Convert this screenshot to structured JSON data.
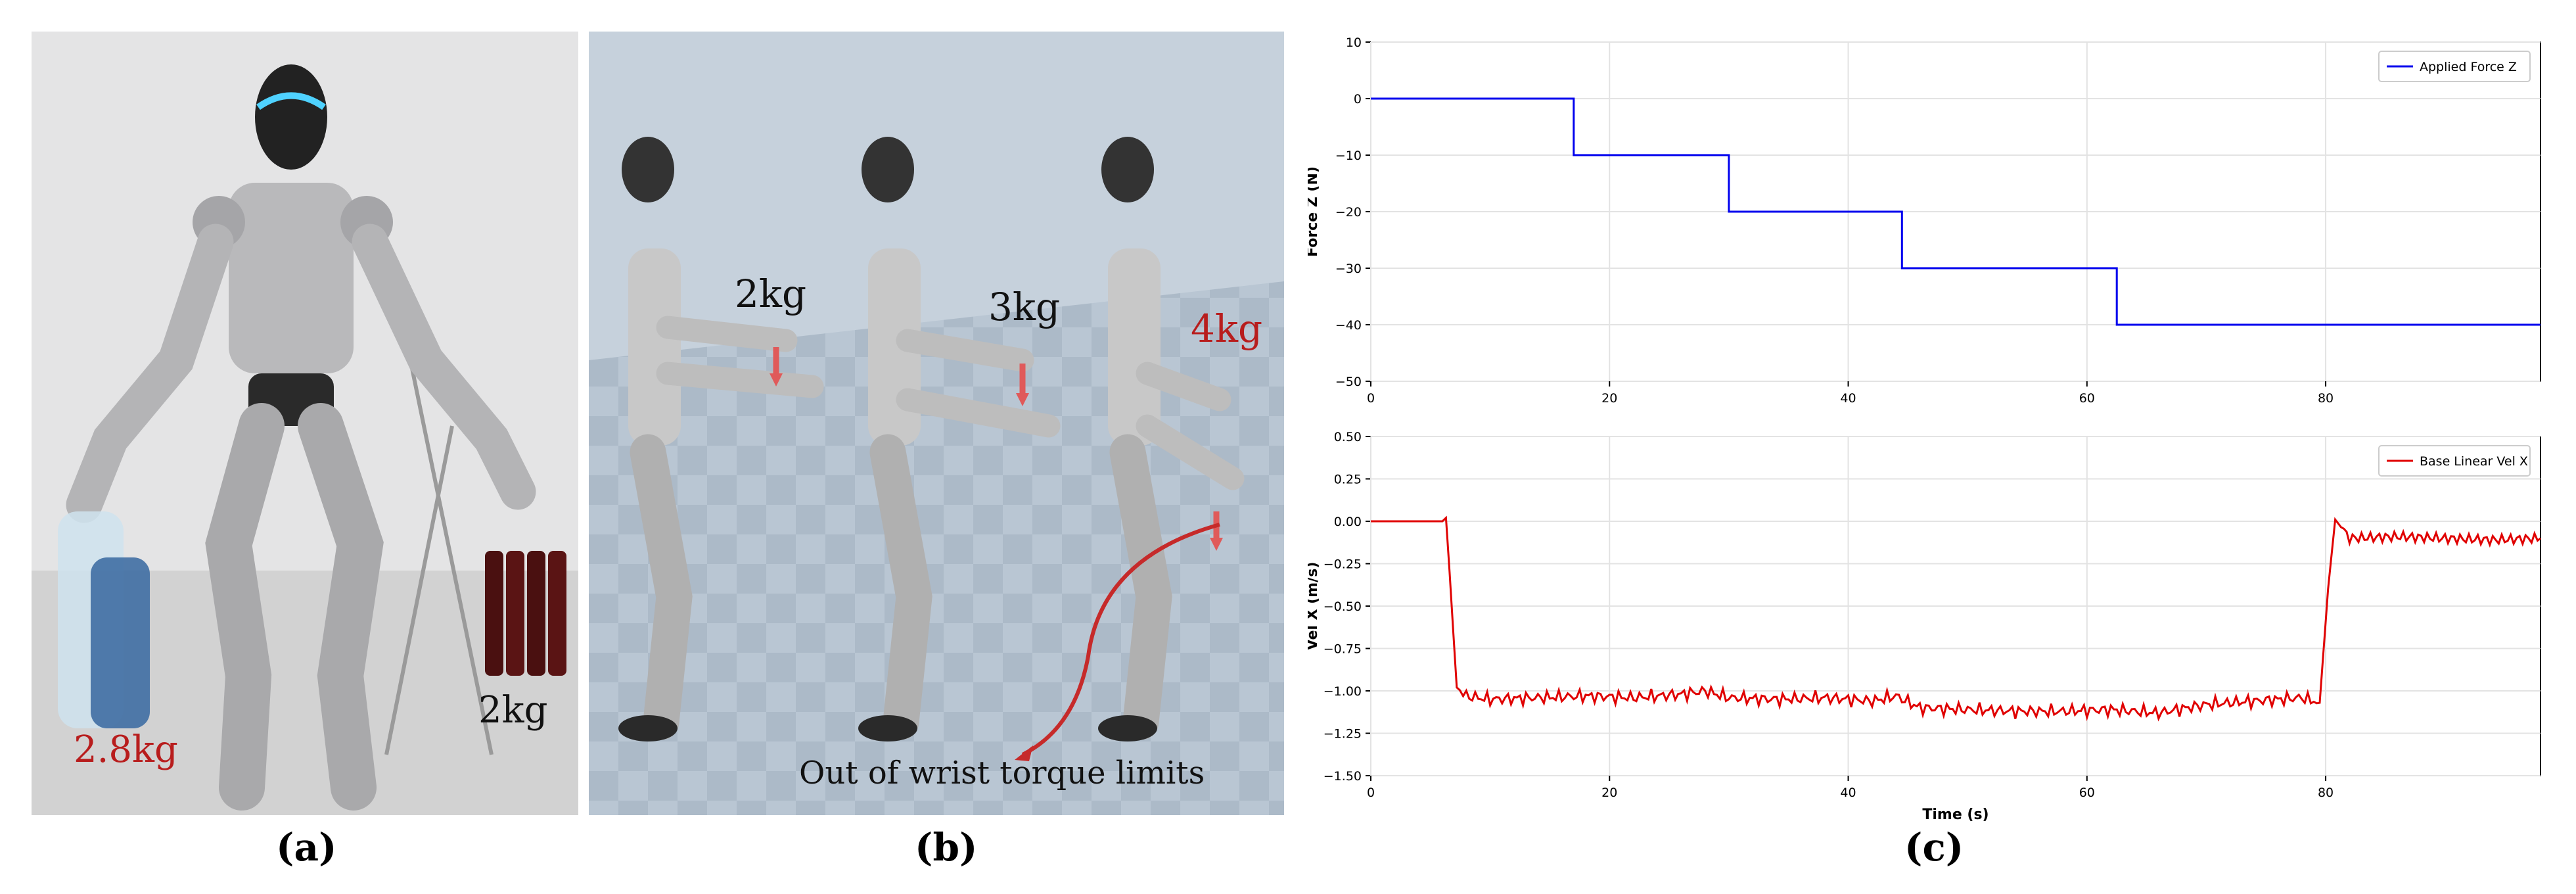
{
  "panel_a": {
    "label_left": "2.8kg",
    "label_right": "2kg",
    "caption": "(a)"
  },
  "panel_b": {
    "label_1": "2kg",
    "label_2": "3kg",
    "label_3": "4kg",
    "annotation": "Out of wrist torque limits",
    "caption": "(b)"
  },
  "panel_c": {
    "caption": "(c)"
  },
  "colors": {
    "force_line": "#0000ee",
    "vel_line": "#e00000",
    "red_label": "#b81d1d"
  },
  "chart_data": [
    {
      "type": "line",
      "ylabel": "Force Z (N)",
      "xlabel": "",
      "xlim": [
        0,
        98
      ],
      "ylim": [
        -50,
        10
      ],
      "yticks": [
        10,
        0,
        -10,
        -20,
        -30,
        -40,
        -50
      ],
      "xticks": [
        0,
        20,
        40,
        60,
        80
      ],
      "grid": true,
      "legend": "top-right",
      "series": [
        {
          "name": "Applied Force Z",
          "x": [
            0,
            17,
            17,
            30,
            30,
            44.5,
            44.5,
            62.5,
            62.5,
            98
          ],
          "y": [
            0,
            0,
            -10,
            -10,
            -20,
            -20,
            -30,
            -30,
            -40,
            -40
          ]
        }
      ]
    },
    {
      "type": "line",
      "ylabel": "Vel X (m/s)",
      "xlabel": "Time (s)",
      "xlim": [
        0,
        98
      ],
      "ylim": [
        -1.5,
        0.5
      ],
      "yticks": [
        0.5,
        0.25,
        0.0,
        -0.25,
        -0.5,
        -0.75,
        -1.0,
        -1.25,
        -1.5
      ],
      "ytick_labels": [
        "0.50",
        "0.25",
        "0.00",
        "−0.25",
        "−0.50",
        "−0.75",
        "−1.00",
        "−1.25",
        "−1.50"
      ],
      "xticks": [
        0,
        20,
        40,
        60,
        80
      ],
      "grid": true,
      "legend": "top-right",
      "series": [
        {
          "name": "Base Linear Vel X",
          "x": [
            0,
            6,
            6.3,
            6.6,
            7.2,
            8,
            10,
            14,
            18,
            22,
            26,
            28,
            30,
            34,
            38,
            42,
            44,
            46,
            50,
            54,
            58,
            62,
            66,
            70,
            74,
            78,
            79.5,
            80.2,
            80.8,
            82,
            86,
            90,
            94,
            98
          ],
          "y": [
            0,
            0,
            0.02,
            -0.3,
            -0.98,
            -1.03,
            -1.05,
            -1.04,
            -1.03,
            -1.04,
            -1.02,
            -1.0,
            -1.04,
            -1.05,
            -1.04,
            -1.06,
            -1.03,
            -1.1,
            -1.11,
            -1.12,
            -1.12,
            -1.11,
            -1.13,
            -1.08,
            -1.06,
            -1.04,
            -1.07,
            -0.4,
            0.01,
            -0.1,
            -0.09,
            -0.1,
            -0.11,
            -0.1
          ]
        }
      ]
    }
  ]
}
